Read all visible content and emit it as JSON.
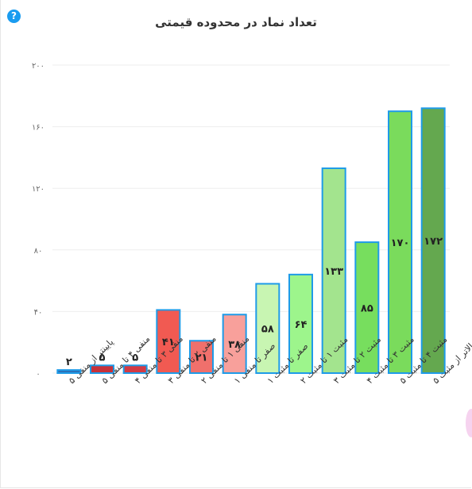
{
  "ui": {
    "help_glyph": "?"
  },
  "chart_data": {
    "type": "bar",
    "title": "تعداد نماد در محدوده قیمتی",
    "xlabel": "",
    "ylabel": "",
    "ylim": [
      0,
      200
    ],
    "y_ticks": [
      0,
      40,
      80,
      120,
      160,
      200
    ],
    "y_tick_labels": [
      "۰",
      "۴۰",
      "۸۰",
      "۱۲۰",
      "۱۶۰",
      "۲۰۰"
    ],
    "grid": true,
    "categories": [
      "پایینتر از منفی ۵",
      "منفی ۴ تا منفی ۵",
      "منفی ۳ تا منفی ۴",
      "منفی ۲ تا منفی ۳",
      "منفی ۱ تا منفی ۲",
      "صفر تا منفی ۱",
      "صفر تا مثبت ۱",
      "مثبت ۱ تا مثبت ۲",
      "مثبت ۲ تا مثبت ۳",
      "مثبت ۳ تا مثبت ۴",
      "مثبت ۴ تا مثبت ۵",
      "بالاتر از مثبت ۵"
    ],
    "values": [
      2,
      5,
      5,
      41,
      21,
      38,
      58,
      64,
      133,
      85,
      170,
      172
    ],
    "value_labels": [
      "۲",
      "۵",
      "۵",
      "۴۱",
      "۲۱",
      "۳۸",
      "۵۸",
      "۶۴",
      "۱۳۳",
      "۸۵",
      "۱۷۰",
      "۱۷۲"
    ],
    "colors": [
      "#2d6fb5",
      "#c7313a",
      "#d33a44",
      "#f15a52",
      "#f0706c",
      "#f8a09b",
      "#c8f5b2",
      "#9df58c",
      "#a3e48e",
      "#77de5e",
      "#7adb5c",
      "#64a84f"
    ],
    "bar_border_color": "#1e9be8"
  }
}
